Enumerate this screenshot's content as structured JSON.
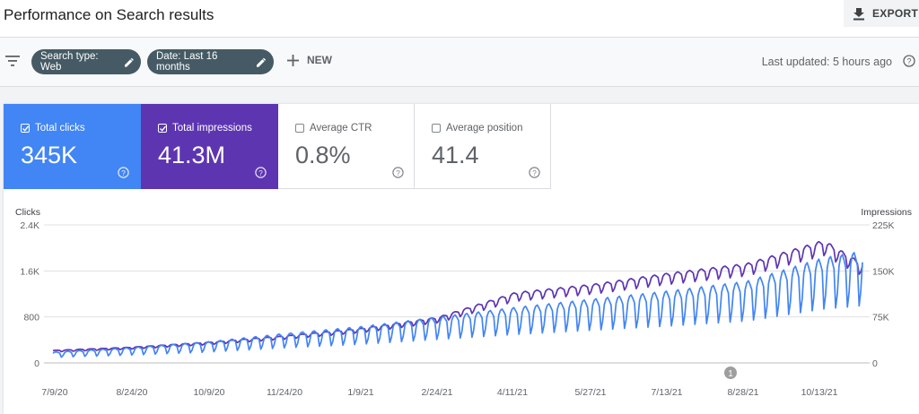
{
  "header": {
    "title": "Performance on Search results",
    "export_label": "EXPORT"
  },
  "filters": {
    "search_type_chip": "Search type: Web",
    "date_chip": "Date: Last 16 months",
    "new_label": "NEW",
    "last_updated": "Last updated: 5 hours ago"
  },
  "metrics": [
    {
      "label": "Total clicks",
      "value": "345K",
      "checked": true,
      "color": "#4285f4"
    },
    {
      "label": "Total impressions",
      "value": "41.3M",
      "checked": true,
      "color": "#5e35b1"
    },
    {
      "label": "Average CTR",
      "value": "0.8%",
      "checked": false
    },
    {
      "label": "Average position",
      "value": "41.4",
      "checked": false
    }
  ],
  "chart_data": {
    "type": "line",
    "left_axis_title": "Clicks",
    "right_axis_title": "Impressions",
    "left_ticks": [
      "2.4K",
      "1.6K",
      "800",
      "0"
    ],
    "left_tick_values": [
      2400,
      1600,
      800,
      0
    ],
    "right_ticks": [
      "225K",
      "150K",
      "75K",
      "0"
    ],
    "right_tick_values": [
      225000,
      150000,
      75000,
      0
    ],
    "ylim_clicks": [
      0,
      2400
    ],
    "ylim_impressions": [
      0,
      225000
    ],
    "x_labels": [
      "7/9/20",
      "8/24/20",
      "10/9/20",
      "11/24/20",
      "1/9/21",
      "2/24/21",
      "4/11/21",
      "5/27/21",
      "7/13/21",
      "8/28/21",
      "10/13/21"
    ],
    "annotation": {
      "label": "1",
      "date": "8/28/21"
    },
    "series": [
      {
        "name": "Clicks",
        "color": "#4285f4",
        "axis": "left",
        "x_start": "7/9/20",
        "x_end": "11/1/21",
        "trend": [
          [
            0,
            170
          ],
          [
            46,
            240
          ],
          [
            92,
            330
          ],
          [
            138,
            460
          ],
          [
            184,
            570
          ],
          [
            230,
            720
          ],
          [
            276,
            870
          ],
          [
            322,
            1000
          ],
          [
            368,
            1130
          ],
          [
            414,
            1280
          ],
          [
            460,
            1650
          ],
          [
            483,
            1750
          ]
        ]
      },
      {
        "name": "Impressions",
        "color": "#5e35b1",
        "axis": "right",
        "x_start": "7/9/20",
        "x_end": "11/1/21",
        "trend": [
          [
            0,
            20000
          ],
          [
            46,
            25000
          ],
          [
            92,
            33000
          ],
          [
            138,
            43000
          ],
          [
            184,
            55000
          ],
          [
            230,
            73000
          ],
          [
            276,
            112000
          ],
          [
            322,
            125000
          ],
          [
            368,
            143000
          ],
          [
            414,
            158000
          ],
          [
            460,
            195000
          ],
          [
            483,
            158000
          ]
        ]
      }
    ]
  },
  "colors": {
    "clicks": "#4285f4",
    "impressions": "#5e35b1",
    "chip": "#455a64",
    "grid": "#e0e0e0"
  },
  "icons": {
    "export": "download-icon",
    "filter": "filter-icon",
    "edit": "pencil-icon",
    "new": "plus-icon",
    "help": "help-circle-icon"
  }
}
